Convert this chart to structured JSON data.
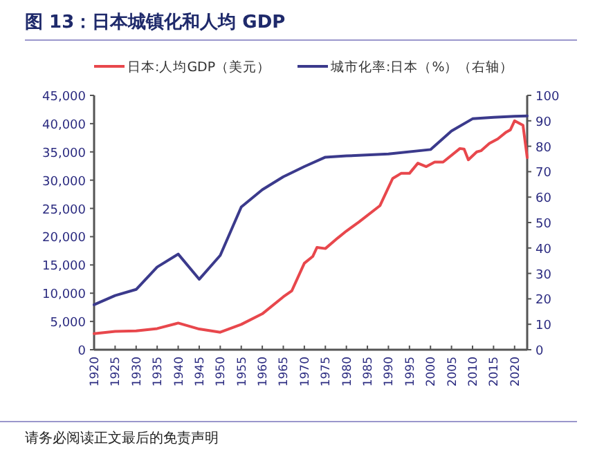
{
  "chart_data": {
    "type": "line",
    "title": "图 13：日本城镇化和人均 GDP",
    "annotations": [
      "请务必阅读正文最后的免责声明"
    ],
    "legend": "top",
    "xlim": [
      1920,
      2023
    ],
    "xticks": [
      1920,
      1925,
      1930,
      1935,
      1940,
      1945,
      1950,
      1955,
      1960,
      1965,
      1970,
      1975,
      1980,
      1985,
      1990,
      1995,
      2000,
      2005,
      2010,
      2015,
      2020
    ],
    "ylim": [
      0,
      45000
    ],
    "yticks": [
      0,
      {
        "value": 5000,
        "label": "5,000"
      },
      {
        "value": 10000,
        "label": "10,000"
      },
      {
        "value": 15000,
        "label": "15,000"
      },
      {
        "value": 20000,
        "label": "20,000"
      },
      {
        "value": 25000,
        "label": "25,000"
      },
      {
        "value": 30000,
        "label": "30,000"
      },
      {
        "value": 35000,
        "label": "35,000"
      },
      {
        "value": 40000,
        "label": "40,000"
      },
      {
        "value": 45000,
        "label": "45,000"
      }
    ],
    "y2lim": [
      0,
      100
    ],
    "y2ticks": [
      0,
      10,
      20,
      30,
      40,
      50,
      60,
      70,
      80,
      90,
      100
    ],
    "series": [
      {
        "name": "日本:人均GDP（美元）",
        "color": "#e8474c",
        "x": [
          1920,
          1925,
          1930,
          1935,
          1940,
          1945,
          1950,
          1955,
          1960,
          1965,
          1967,
          1970,
          1972,
          1973,
          1975,
          1978,
          1980,
          1983,
          1988,
          1991,
          1993,
          1995,
          1997,
          1999,
          2001,
          2003,
          2007,
          2008,
          2009,
          2011,
          2012,
          2014,
          2016,
          2018,
          2019,
          2020,
          2021,
          2022,
          2023
        ],
        "values": [
          2850,
          3250,
          3340,
          3740,
          4720,
          3660,
          3090,
          4480,
          6350,
          9360,
          10400,
          15300,
          16500,
          18100,
          17900,
          19800,
          21000,
          22600,
          25500,
          30300,
          31200,
          31200,
          33000,
          32400,
          33200,
          33200,
          35600,
          35500,
          33600,
          35000,
          35200,
          36500,
          37300,
          38500,
          38900,
          40500,
          40100,
          39700,
          34000
        ]
      },
      {
        "name": "城市化率:日本（%）（右轴）",
        "color": "#3b3a8c",
        "axis": "y2",
        "x": [
          1920,
          1925,
          1930,
          1935,
          1940,
          1945,
          1950,
          1955,
          1960,
          1965,
          1970,
          1975,
          1980,
          1990,
          2000,
          2005,
          2010,
          2015,
          2020,
          2023
        ],
        "values": [
          17.7,
          21.3,
          23.7,
          32.5,
          37.6,
          27.7,
          37.1,
          56.1,
          62.9,
          68.0,
          72.0,
          75.7,
          76.2,
          77.0,
          78.7,
          86.0,
          90.8,
          91.4,
          91.8,
          91.9
        ]
      }
    ]
  }
}
